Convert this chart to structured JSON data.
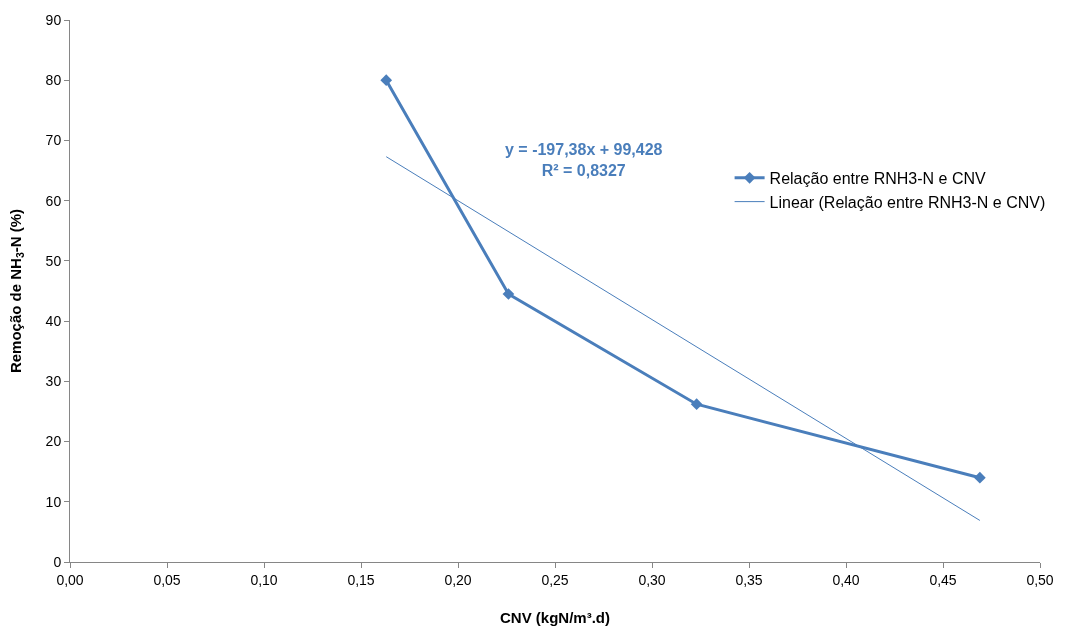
{
  "chart_data": {
    "type": "line",
    "xlabel": "CNV (kgN/m³.d)",
    "ylabel": "Remoção de NH$_{3}$-N (%)",
    "xlim": [
      0,
      0.5
    ],
    "xticks": [
      {
        "value": 0,
        "label": "0,00"
      },
      {
        "value": 0.05,
        "label": "0,05"
      },
      {
        "value": 0.1,
        "label": "0,10"
      },
      {
        "value": 0.15,
        "label": "0,15"
      },
      {
        "value": 0.2,
        "label": "0,20"
      },
      {
        "value": 0.25,
        "label": "0,25"
      },
      {
        "value": 0.3,
        "label": "0,30"
      },
      {
        "value": 0.35,
        "label": "0,35"
      },
      {
        "value": 0.4,
        "label": "0,40"
      },
      {
        "value": 0.45,
        "label": "0,45"
      },
      {
        "value": 0.5,
        "label": "0,50"
      }
    ],
    "ylim": [
      0,
      90
    ],
    "yticks": [
      0,
      10,
      20,
      30,
      40,
      50,
      60,
      70,
      80,
      90
    ],
    "legend": "right",
    "series": [
      {
        "name": "Relação entre RNH3-N e CNV",
        "color": "#4a7ebb",
        "x": [
          0.163,
          0.226,
          0.323,
          0.469
        ],
        "values": [
          80,
          44.5,
          26.2,
          14.0
        ],
        "marker": "diamond"
      },
      {
        "name": "Linear (Relação entre RNH3-N e CNV)",
        "color": "#4a7ebb",
        "x": [
          0.163,
          0.469
        ],
        "values": [
          67.3,
          6.9
        ],
        "marker": "none"
      }
    ],
    "annotations": [
      "y = -197,38x + 99,428\nR² = 0,8327"
    ]
  }
}
